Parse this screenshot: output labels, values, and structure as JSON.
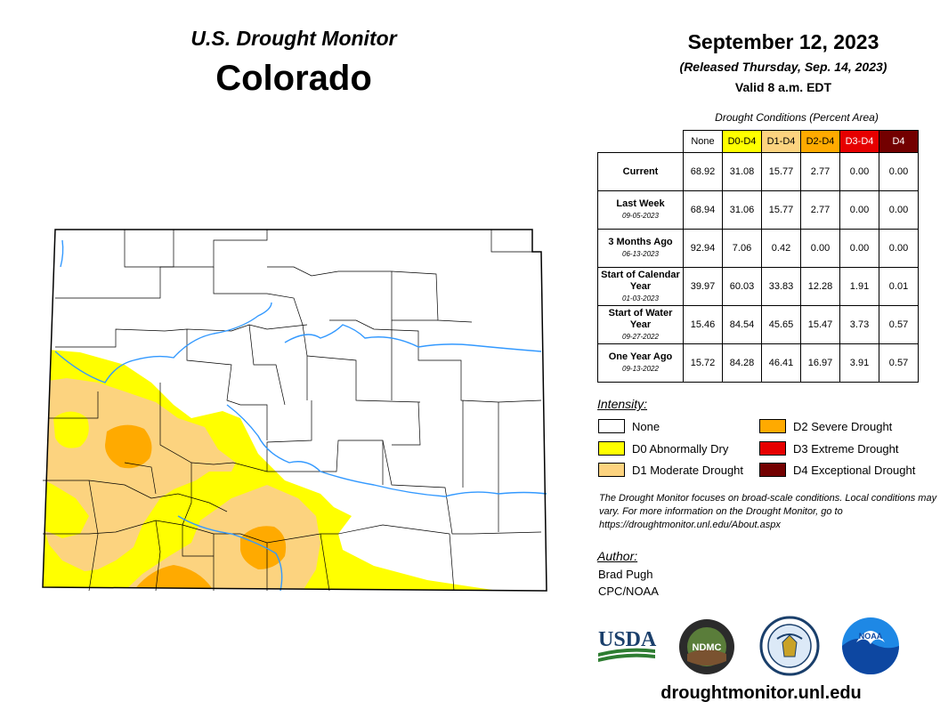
{
  "header": {
    "product": "U.S. Drought Monitor",
    "state": "Colorado"
  },
  "release": {
    "date": "September 12, 2023",
    "released": "(Released Thursday, Sep. 14, 2023)",
    "valid": "Valid 8 a.m. EDT"
  },
  "table": {
    "caption": "Drought Conditions (Percent Area)",
    "columns": [
      "None",
      "D0-D4",
      "D1-D4",
      "D2-D4",
      "D3-D4",
      "D4"
    ],
    "column_colors": [
      "#ffffff",
      "#ffff00",
      "#fcd37f",
      "#ffaa00",
      "#e60000",
      "#730000"
    ],
    "rows": [
      {
        "label": "Current",
        "sub": "",
        "values": [
          "68.92",
          "31.08",
          "15.77",
          "2.77",
          "0.00",
          "0.00"
        ]
      },
      {
        "label": "Last Week",
        "sub": "09-05-2023",
        "values": [
          "68.94",
          "31.06",
          "15.77",
          "2.77",
          "0.00",
          "0.00"
        ]
      },
      {
        "label": "3 Months Ago",
        "sub": "06-13-2023",
        "values": [
          "92.94",
          "7.06",
          "0.42",
          "0.00",
          "0.00",
          "0.00"
        ]
      },
      {
        "label": "Start of Calendar Year",
        "sub": "01-03-2023",
        "values": [
          "39.97",
          "60.03",
          "33.83",
          "12.28",
          "1.91",
          "0.01"
        ]
      },
      {
        "label": "Start of Water Year",
        "sub": "09-27-2022",
        "values": [
          "15.46",
          "84.54",
          "45.65",
          "15.47",
          "3.73",
          "0.57"
        ]
      },
      {
        "label": "One Year Ago",
        "sub": "09-13-2022",
        "values": [
          "15.72",
          "84.28",
          "46.41",
          "16.97",
          "3.91",
          "0.57"
        ]
      }
    ]
  },
  "legend": {
    "title": "Intensity:",
    "items": [
      {
        "label": "None",
        "color": "#ffffff"
      },
      {
        "label": "D0 Abnormally Dry",
        "color": "#ffff00"
      },
      {
        "label": "D1 Moderate Drought",
        "color": "#fcd37f"
      },
      {
        "label": "D2 Severe Drought",
        "color": "#ffaa00"
      },
      {
        "label": "D3 Extreme Drought",
        "color": "#e60000"
      },
      {
        "label": "D4 Exceptional Drought",
        "color": "#730000"
      }
    ]
  },
  "note": "The Drought Monitor focuses on broad-scale conditions. Local conditions may vary. For more information on the Drought Monitor, go to https://droughtmonitor.unl.edu/About.aspx",
  "author": {
    "title": "Author:",
    "name": "Brad Pugh",
    "org": "CPC/NOAA"
  },
  "logos": {
    "usda": "USDA",
    "ndmc": "NDMC",
    "noaa": "NOAA"
  },
  "website": "droughtmonitor.unl.edu"
}
